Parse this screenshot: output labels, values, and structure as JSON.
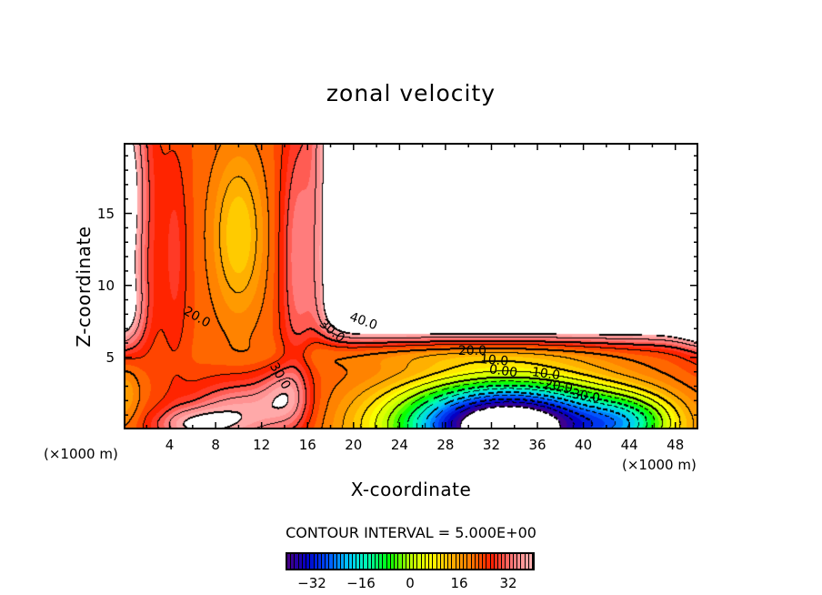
{
  "chart_data": {
    "type": "heatmap",
    "subtype": "filled-contour",
    "title": "zonal velocity",
    "xlabel": "X-coordinate",
    "ylabel": "Z-coordinate",
    "x_unit": "(×1000 m)",
    "z_unit": "(×1000 m)",
    "xlim": [
      0,
      50
    ],
    "ylim": [
      0,
      20
    ],
    "x_ticks": [
      4,
      8,
      12,
      16,
      20,
      24,
      28,
      32,
      36,
      40,
      44,
      48
    ],
    "y_ticks": [
      5,
      10,
      15
    ],
    "contour_interval_text": "CONTOUR INTERVAL = 5.000E+00",
    "contour_interval": 5,
    "value_range": [
      -40,
      40
    ],
    "colorbar": {
      "ticks": [
        -32,
        -16,
        0,
        16,
        32
      ],
      "tick_labels": [
        "−32",
        "−16",
        "0",
        "16",
        "32"
      ],
      "colormap": [
        "#4b0082",
        "#0000c8",
        "#0050ff",
        "#00c8ff",
        "#00ffaa",
        "#00ff00",
        "#b4ff00",
        "#ffff00",
        "#ffb400",
        "#ff7800",
        "#ff1e00",
        "#ff7878",
        "#ffb4b4"
      ]
    },
    "negative_contours_dashed": true,
    "out_of_range_regions_blank": true,
    "contour_labels": [
      {
        "text": "20.0",
        "x": 5.3,
        "z": 8.2
      },
      {
        "text": "40.0",
        "x": 19.7,
        "z": 7.8
      },
      {
        "text": "30.0",
        "x": 17.2,
        "z": 7.4
      },
      {
        "text": "30.0",
        "x": 13.0,
        "z": 4.5
      },
      {
        "text": "20.0",
        "x": 29.1,
        "z": 5.4
      },
      {
        "text": "10.0",
        "x": 31.0,
        "z": 4.8
      },
      {
        "text": "0.00",
        "x": 31.8,
        "z": 4.1
      },
      {
        "text": "10.0",
        "x": 35.5,
        "z": 3.9
      },
      {
        "text": "20.0",
        "x": 36.6,
        "z": 3.1
      },
      {
        "text": "30.0",
        "x": 39.0,
        "z": 2.4
      }
    ],
    "features": [
      {
        "name": "upper-right blank region",
        "description": "values above 40 (not shaded)",
        "x_range": [
          17,
          50
        ],
        "z_range": [
          7,
          20
        ]
      },
      {
        "name": "negative jet core",
        "description": "minimum below -40, centered near x=33, z=0.5",
        "x_range": [
          20,
          48
        ],
        "z_range": [
          0,
          4.5
        ]
      },
      {
        "name": "yellow column",
        "description": "local minimum ~10 near x=10, z=14",
        "x_range": [
          8,
          12
        ],
        "z_range": [
          9,
          18
        ]
      }
    ]
  }
}
